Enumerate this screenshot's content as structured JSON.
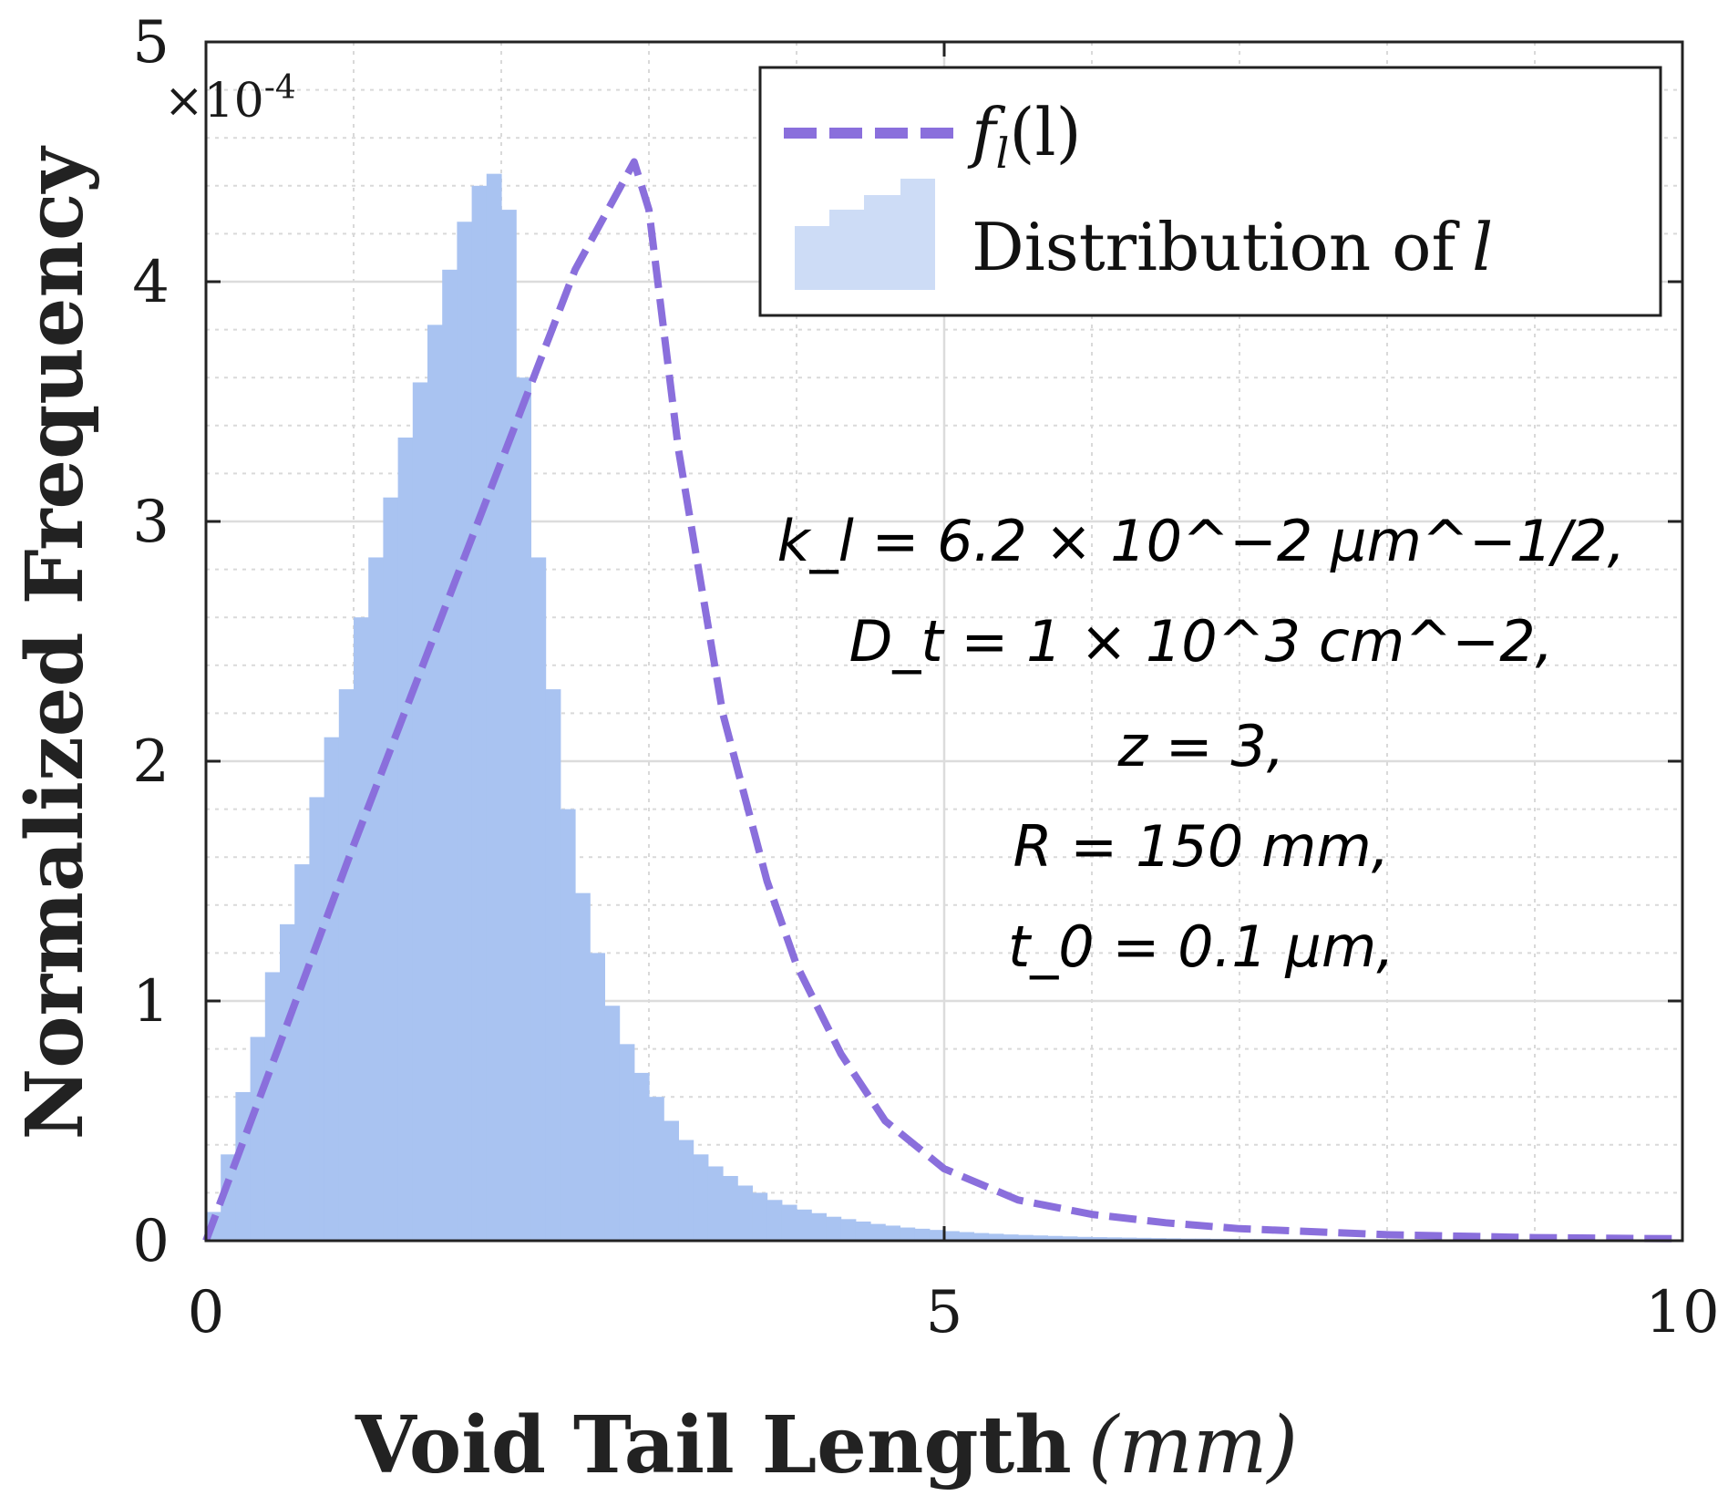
{
  "chart_data": {
    "type": "bar",
    "title": "",
    "xlabel": "Void Tail Length",
    "xlabel_unit": "(mm)",
    "ylabel": "Normalized Frequency",
    "y_exponent_label": "×10",
    "y_exponent_power": "-4",
    "xlim": [
      0,
      10
    ],
    "ylim": [
      0,
      5
    ],
    "x_ticks": [
      0,
      5,
      10
    ],
    "y_ticks": [
      0,
      1,
      2,
      3,
      4,
      5
    ],
    "grid": "major and minor",
    "legend_position": "top-right",
    "legend": {
      "curve": "f_l(l)",
      "curve_main": "f",
      "curve_sub": "l",
      "curve_arg": "(l)",
      "histogram": "Distribution of",
      "histogram_var": "l"
    },
    "colors": {
      "histogram_fill": "#a9c3f1",
      "curve": "#8a6fdc",
      "legend_patch": "#cddcf6"
    },
    "annotation_lines": [
      "k_l = 6.2 × 10^−2 μm^−1/2,",
      "D_t = 1 × 10^3 cm^−2,",
      "z = 3,",
      "R = 150 mm,",
      "t_0 = 0.1 μm,"
    ],
    "series": [
      {
        "name": "Distribution of l",
        "kind": "histogram",
        "bin_width": 0.1,
        "bin_start": 0,
        "values": [
          0.12,
          0.36,
          0.62,
          0.85,
          1.12,
          1.32,
          1.57,
          1.85,
          2.1,
          2.3,
          2.6,
          2.85,
          3.1,
          3.35,
          3.58,
          3.82,
          4.05,
          4.25,
          4.4,
          4.45,
          4.3,
          3.6,
          2.85,
          2.3,
          1.8,
          1.45,
          1.2,
          0.98,
          0.82,
          0.7,
          0.6,
          0.5,
          0.42,
          0.36,
          0.31,
          0.27,
          0.23,
          0.2,
          0.17,
          0.15,
          0.13,
          0.115,
          0.1,
          0.09,
          0.08,
          0.07,
          0.063,
          0.055,
          0.05,
          0.045,
          0.04,
          0.036,
          0.032,
          0.029,
          0.026,
          0.024,
          0.022,
          0.02,
          0.018,
          0.016,
          0.015,
          0.014,
          0.013,
          0.012,
          0.011,
          0.01,
          0.009,
          0.009,
          0.008,
          0.008,
          0.007,
          0.007,
          0.006,
          0.006,
          0.006,
          0.005,
          0.005,
          0.005,
          0.004,
          0.004
        ]
      },
      {
        "name": "f_l(l)",
        "kind": "line",
        "x": [
          0,
          0.5,
          1.0,
          1.5,
          2.0,
          2.5,
          2.9,
          3.0,
          3.2,
          3.5,
          3.8,
          4.0,
          4.3,
          4.6,
          5.0,
          5.5,
          6.0,
          6.5,
          7.0,
          8.0,
          9.0,
          10.0
        ],
        "y": [
          0,
          0.82,
          1.65,
          2.45,
          3.25,
          4.05,
          4.5,
          4.3,
          3.3,
          2.2,
          1.5,
          1.15,
          0.78,
          0.5,
          0.3,
          0.17,
          0.11,
          0.075,
          0.05,
          0.025,
          0.013,
          0.008
        ]
      }
    ]
  }
}
